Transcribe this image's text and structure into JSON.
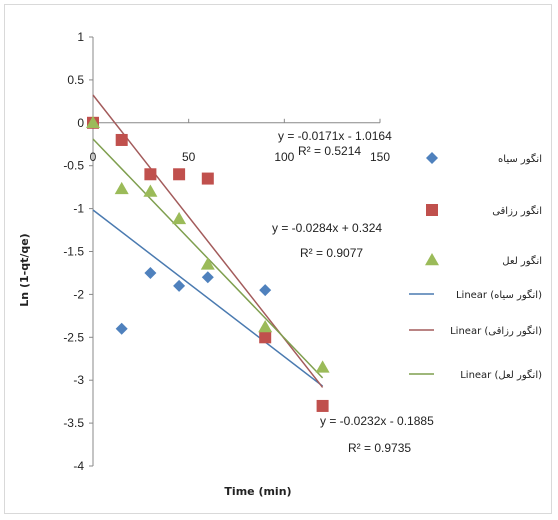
{
  "chart_data": {
    "type": "scatter",
    "xlabel": "Time (min)",
    "ylabel": "Ln (1-qt/qe)",
    "xlim": [
      0,
      150
    ],
    "ylim": [
      -4,
      1
    ],
    "x_ticks": [
      "0",
      "50",
      "100",
      "150"
    ],
    "y_ticks": [
      "1",
      "0.5",
      "0",
      "-0.5",
      "-1",
      "-1.5",
      "-2",
      "-2.5",
      "-3",
      "-3.5",
      "-4"
    ],
    "series": [
      {
        "name": "انگور سیاه",
        "color": "#4f81bd",
        "marker": "diamond",
        "points": [
          [
            0,
            0
          ],
          [
            15,
            -2.4
          ],
          [
            30,
            -1.75
          ],
          [
            45,
            -1.9
          ],
          [
            60,
            -1.8
          ],
          [
            90,
            -1.95
          ]
        ]
      },
      {
        "name": "انگور رزاقی",
        "color": "#c0504d",
        "marker": "square",
        "points": [
          [
            0,
            0
          ],
          [
            15,
            -0.2
          ],
          [
            30,
            -0.6
          ],
          [
            45,
            -0.6
          ],
          [
            60,
            -0.65
          ],
          [
            90,
            -2.5
          ],
          [
            120,
            -3.3
          ]
        ]
      },
      {
        "name": "انگور لعل",
        "color": "#9bbb59",
        "marker": "triangle",
        "points": [
          [
            0,
            0
          ],
          [
            15,
            -0.77
          ],
          [
            30,
            -0.8
          ],
          [
            45,
            -1.12
          ],
          [
            60,
            -1.65
          ],
          [
            90,
            -2.38
          ],
          [
            120,
            -2.85
          ]
        ]
      }
    ],
    "trendlines": [
      {
        "name": "Linear (انگور سیاه)",
        "slope": -0.0171,
        "intercept": -1.0164,
        "color": "#4a7ab0",
        "x_range": [
          0,
          120
        ]
      },
      {
        "name": "Linear (انگور رزاقی)",
        "slope": -0.0284,
        "intercept": 0.324,
        "color": "#a35b5b",
        "x_range": [
          0,
          120
        ]
      },
      {
        "name": "Linear (انگور لعل)",
        "slope": -0.0232,
        "intercept": -0.1885,
        "color": "#7f9f4f",
        "x_range": [
          0,
          120
        ]
      }
    ],
    "annotations": [
      {
        "equation": "y = -0.0171x - 1.0164",
        "r2": "R² = 0.5214"
      },
      {
        "equation": "y = -0.0284x + 0.324",
        "r2": "R² = 0.9077"
      },
      {
        "equation": "y = -0.0232x - 0.1885",
        "r2": "R² = 0.9735"
      }
    ],
    "legend_position": "right",
    "grid": false
  }
}
